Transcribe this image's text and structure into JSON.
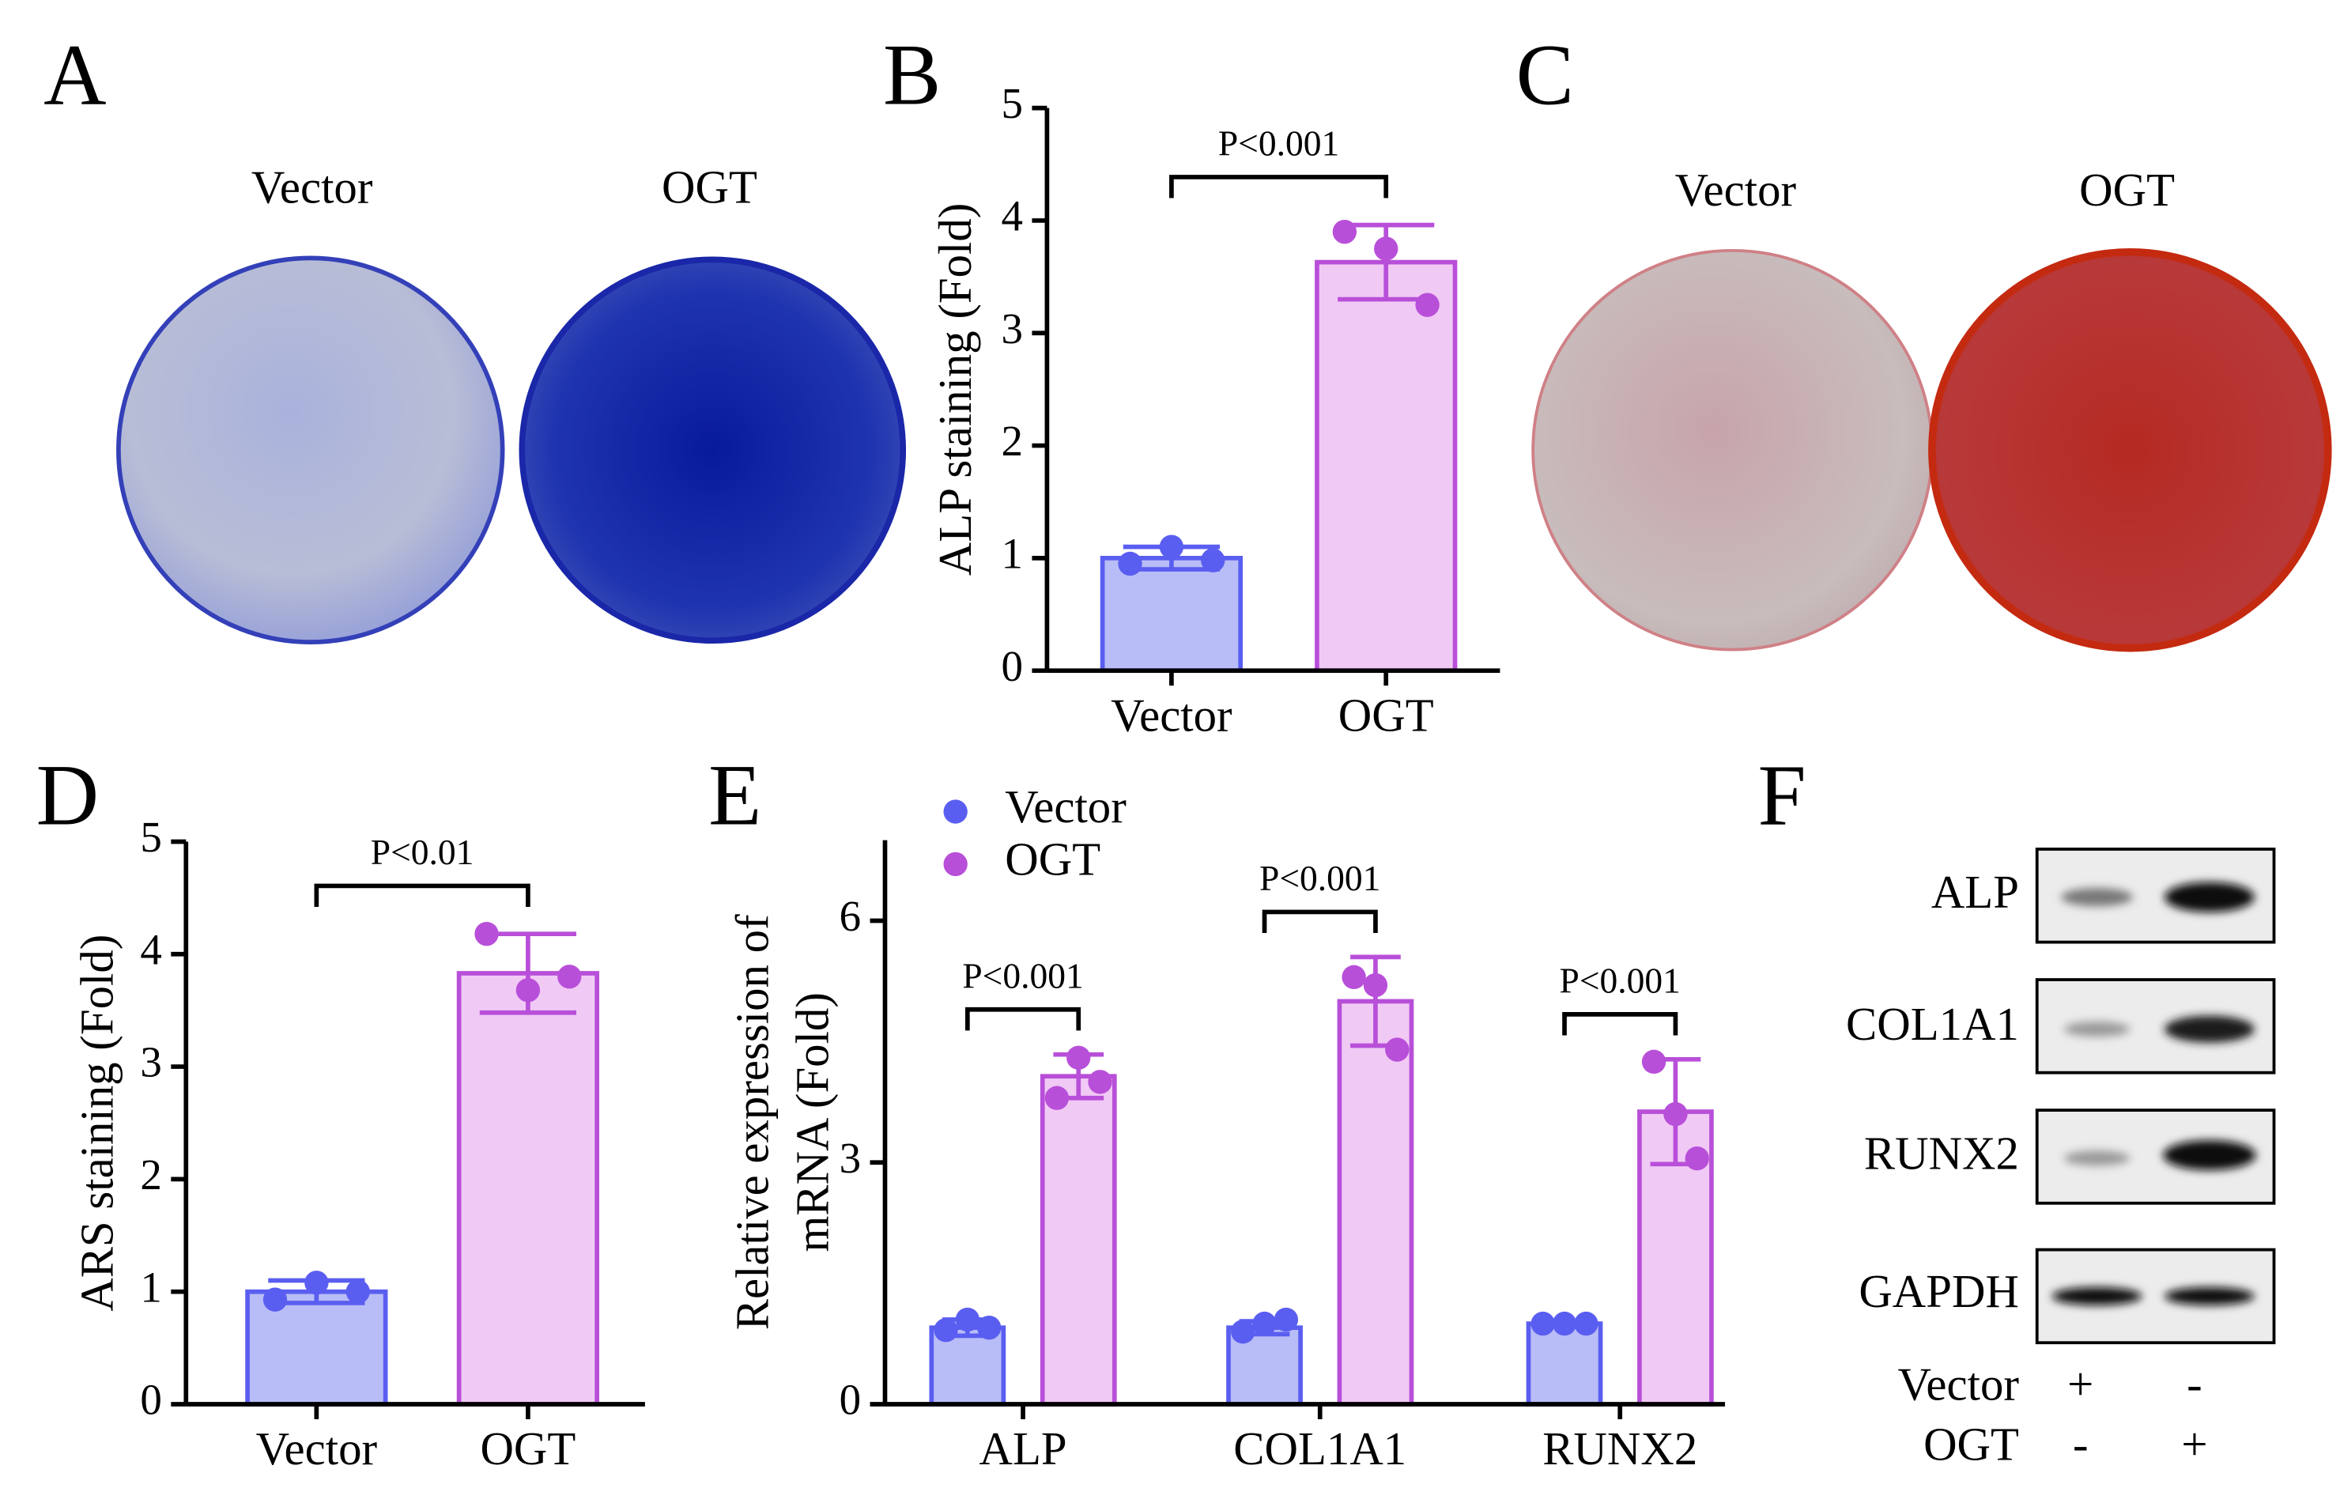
{
  "panel_labels": [
    "A",
    "B",
    "C",
    "D",
    "E",
    "F"
  ],
  "panel_a": {
    "labels": [
      "Vector",
      "OGT"
    ]
  },
  "panel_c": {
    "labels": [
      "Vector",
      "OGT"
    ]
  },
  "panel_f": {
    "bands": [
      "ALP",
      "COL1A1",
      "RUNX2",
      "GAPDH"
    ],
    "conditions": [
      {
        "name": "Vector",
        "marks": [
          "+",
          "-"
        ]
      },
      {
        "name": "OGT",
        "marks": [
          "-",
          "+"
        ]
      }
    ]
  },
  "chart_data": [
    {
      "type": "bar",
      "ylabel": "ALP staining (Fold)",
      "categories": [
        "Vector",
        "OGT"
      ],
      "values": [
        1.0,
        3.63
      ],
      "errors": [
        0.1,
        0.33
      ],
      "points": [
        [
          0.95,
          1.1,
          0.98
        ],
        [
          3.9,
          3.75,
          3.25
        ]
      ],
      "colors": [
        "#b9bdf7",
        "#f1c9f5"
      ],
      "edge_colors": [
        "#5a5ef0",
        "#b84fd9"
      ],
      "ylim": [
        0,
        5
      ],
      "yticks": [
        0,
        1,
        2,
        3,
        4,
        5
      ],
      "annotation": "P<0.001"
    },
    {
      "type": "bar",
      "ylabel": "ARS staining (Fold)",
      "categories": [
        "Vector",
        "OGT"
      ],
      "values": [
        1.0,
        3.83
      ],
      "errors": [
        0.1,
        0.35
      ],
      "points": [
        [
          0.93,
          1.08,
          1.0
        ],
        [
          4.18,
          3.68,
          3.8
        ]
      ],
      "colors": [
        "#b9bdf7",
        "#f1c9f5"
      ],
      "edge_colors": [
        "#5a5ef0",
        "#b84fd9"
      ],
      "ylim": [
        0,
        5
      ],
      "yticks": [
        0,
        1,
        2,
        3,
        4,
        5
      ],
      "annotation": "P<0.01"
    },
    {
      "type": "grouped_bar",
      "ylabel": [
        "Relative expression of",
        "mRNA (Fold)"
      ],
      "categories": [
        "ALP",
        "COL1A1",
        "RUNX2"
      ],
      "series": [
        {
          "name": "Vector",
          "color": "#b9bdf7",
          "edge_color": "#5a5ef0",
          "values": [
            0.95,
            0.95,
            1.0
          ],
          "errors": [
            0.1,
            0.08,
            0.03
          ],
          "points": [
            [
              0.92,
              1.05,
              0.95
            ],
            [
              0.9,
              1.0,
              1.05
            ],
            [
              1.0,
              1.0,
              1.0
            ]
          ]
        },
        {
          "name": "OGT",
          "color": "#f1c9f5",
          "edge_color": "#b84fd9",
          "values": [
            4.07,
            5.0,
            3.63
          ],
          "errors": [
            0.27,
            0.55,
            0.65
          ],
          "points": [
            [
              3.8,
              4.3,
              4.0
            ],
            [
              5.3,
              5.2,
              4.4
            ],
            [
              4.25,
              3.6,
              3.05
            ]
          ]
        }
      ],
      "ylim": [
        0,
        7
      ],
      "yticks": [
        0,
        3,
        6
      ],
      "legend": "upper left",
      "annotations": [
        "P<0.001",
        "P<0.001",
        "P<0.001"
      ]
    }
  ]
}
